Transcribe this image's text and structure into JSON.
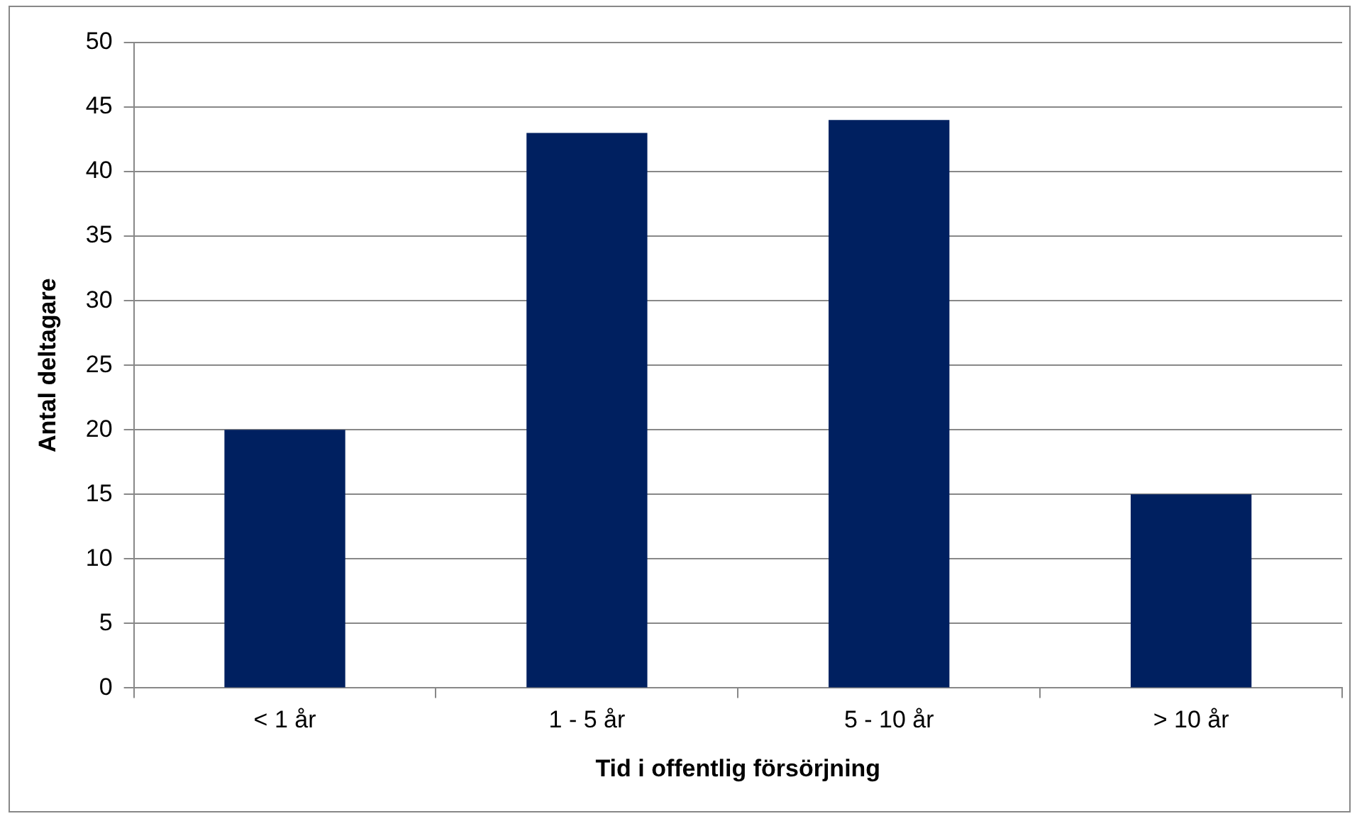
{
  "chart_data": {
    "type": "bar",
    "xlabel": "Tid i offentlig försörjning",
    "ylabel": "Antal deltagare",
    "categories": [
      "< 1 år",
      "1 - 5 år",
      "5 - 10 år",
      "> 10 år"
    ],
    "values": [
      20,
      43,
      44,
      15
    ],
    "color": "#002060",
    "ylim": [
      0,
      50
    ],
    "yticks": [
      0,
      5,
      10,
      15,
      20,
      25,
      30,
      35,
      40,
      45,
      50
    ],
    "grid": "y",
    "legend": false
  }
}
